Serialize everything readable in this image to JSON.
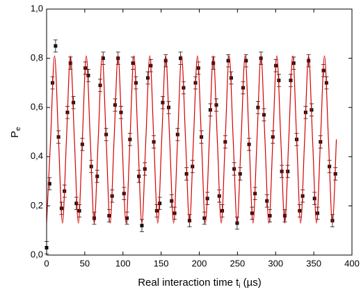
{
  "chart_data": {
    "type": "scatter",
    "x_label": [
      "Real interaction time t",
      "i",
      " (µs)"
    ],
    "y_label": [
      "P",
      "e"
    ],
    "xlim": [
      0,
      400
    ],
    "xticks": [
      0,
      50,
      100,
      150,
      200,
      250,
      300,
      350,
      400
    ],
    "ylim": [
      0,
      1
    ],
    "yticks": [
      {
        "value": 0,
        "label": "0,0"
      },
      {
        "value": 0.2,
        "label": "0,2"
      },
      {
        "value": 0.4,
        "label": "0,4"
      },
      {
        "value": 0.6,
        "label": "0,6"
      },
      {
        "value": 0.8,
        "label": "0,8"
      },
      {
        "value": 1,
        "label": "1,0"
      }
    ],
    "series": [
      {
        "type": "scatter",
        "color": "#111111",
        "error": 0.025,
        "x": [
          0,
          3.9,
          7.8,
          11.7,
          15.6,
          19.5,
          23.4,
          27.3,
          31.2,
          35.1,
          39,
          42.9,
          46.8,
          50.7,
          54.6,
          58.5,
          62.4,
          66.3,
          70.2,
          74.1,
          78,
          81.9,
          85.8,
          89.7,
          93.6,
          97.5,
          101.4,
          105.3,
          109.2,
          113.1,
          117,
          120.9,
          124.8,
          128.7,
          132.6,
          136.5,
          140.4,
          144.3,
          148.2,
          152.1,
          156,
          159.9,
          163.8,
          167.7,
          171.6,
          175.5,
          179.4,
          183.3,
          187.2,
          191.1,
          195,
          198.9,
          202.8,
          206.7,
          210.6,
          214.5,
          218.4,
          222.3,
          226.2,
          230.1,
          234,
          237.9,
          241.8,
          245.7,
          249.6,
          253.5,
          257.4,
          261.3,
          265.2,
          269.1,
          273,
          276.9,
          280.8,
          284.7,
          288.6,
          292.5,
          296.4,
          300.3,
          304.2,
          308.1,
          312,
          315.9,
          319.8,
          323.7,
          327.6,
          331.5,
          335.4,
          339.3,
          343.2,
          347.1,
          351,
          354.9,
          358.8,
          362.7,
          366.6,
          370.5,
          374.4,
          378.3
        ],
        "values": [
          0.03,
          0.29,
          0.7,
          0.85,
          0.48,
          0.19,
          0.26,
          0.58,
          0.78,
          0.62,
          0.21,
          0.18,
          0.45,
          0.76,
          0.73,
          0.36,
          0.15,
          0.32,
          0.69,
          0.8,
          0.49,
          0.16,
          0.24,
          0.61,
          0.8,
          0.58,
          0.25,
          0.15,
          0.47,
          0.78,
          0.7,
          0.32,
          0.12,
          0.35,
          0.72,
          0.77,
          0.46,
          0.18,
          0.21,
          0.62,
          0.79,
          0.6,
          0.22,
          0.17,
          0.49,
          0.8,
          0.68,
          0.33,
          0.14,
          0.36,
          0.7,
          0.76,
          0.48,
          0.15,
          0.23,
          0.59,
          0.78,
          0.61,
          0.24,
          0.18,
          0.46,
          0.79,
          0.72,
          0.35,
          0.13,
          0.33,
          0.68,
          0.79,
          0.45,
          0.17,
          0.25,
          0.6,
          0.8,
          0.57,
          0.22,
          0.16,
          0.48,
          0.77,
          0.71,
          0.34,
          0.16,
          0.34,
          0.71,
          0.78,
          0.47,
          0.18,
          0.24,
          0.58,
          0.79,
          0.59,
          0.23,
          0.17,
          0.46,
          0.75,
          0.7,
          0.36,
          0.14,
          0.33
        ]
      },
      {
        "type": "line",
        "color": "#d40000",
        "x": [
          0,
          5.2,
          10.4,
          15.6,
          20.8,
          26,
          31.2,
          36.4,
          41.6,
          46.8,
          52,
          57.2,
          62.4,
          67.6,
          72.8,
          78,
          83.2,
          88.4,
          93.6,
          98.8,
          104,
          109.2,
          114.4,
          119.6,
          124.8,
          130,
          135.2,
          140.4,
          145.6,
          150.8,
          156,
          161.2,
          166.4,
          171.6,
          176.8,
          182,
          187.2,
          192.4,
          197.6,
          202.8,
          208,
          213.2,
          218.4,
          223.6,
          228.8,
          234,
          239.2,
          244.4,
          249.6,
          254.8,
          260,
          265.2,
          270.4,
          275.6,
          280.8,
          286,
          291.2,
          296.4,
          301.6,
          306.8,
          312,
          317.2,
          322.4,
          327.6,
          332.8,
          338,
          343.2,
          348.4,
          353.6,
          358.8,
          364,
          369.2,
          374.4,
          379.6
        ],
        "values": [
          0.13,
          0.47,
          0.81,
          0.47,
          0.13,
          0.47,
          0.81,
          0.47,
          0.13,
          0.47,
          0.81,
          0.47,
          0.13,
          0.47,
          0.81,
          0.47,
          0.13,
          0.47,
          0.81,
          0.47,
          0.13,
          0.47,
          0.81,
          0.47,
          0.13,
          0.47,
          0.81,
          0.47,
          0.13,
          0.47,
          0.81,
          0.47,
          0.13,
          0.47,
          0.81,
          0.47,
          0.13,
          0.47,
          0.81,
          0.47,
          0.13,
          0.47,
          0.81,
          0.47,
          0.13,
          0.47,
          0.81,
          0.47,
          0.13,
          0.47,
          0.81,
          0.47,
          0.13,
          0.47,
          0.81,
          0.47,
          0.13,
          0.47,
          0.81,
          0.47,
          0.13,
          0.47,
          0.81,
          0.47,
          0.13,
          0.47,
          0.81,
          0.47,
          0.13,
          0.47,
          0.81,
          0.47,
          0.13,
          0.47
        ]
      }
    ]
  }
}
